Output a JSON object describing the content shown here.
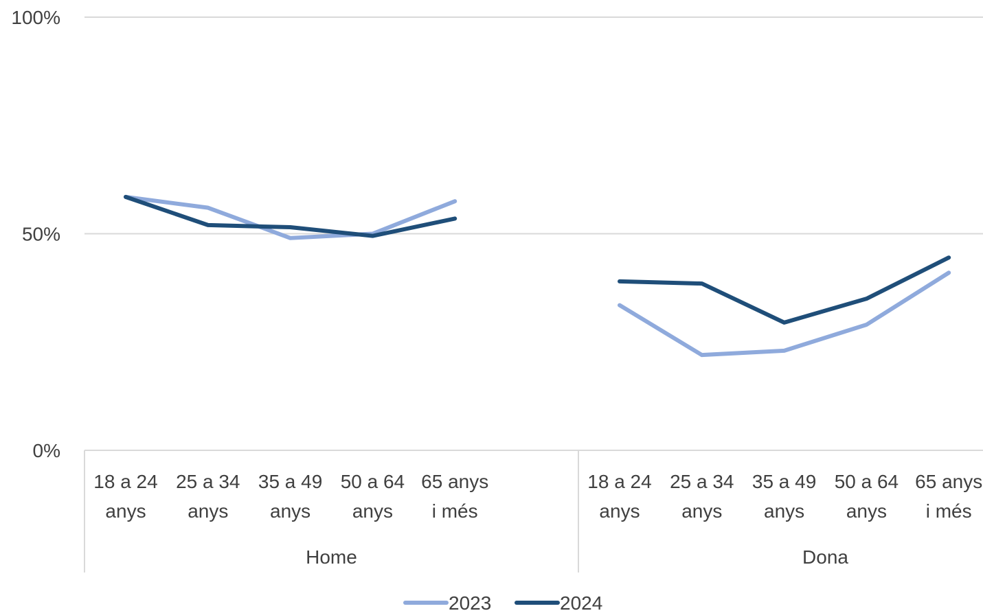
{
  "chart_data": {
    "type": "line",
    "title": "",
    "xlabel": "",
    "ylabel": "",
    "ylim": [
      0,
      100
    ],
    "y_ticks": [
      "0%",
      "50%",
      "100%"
    ],
    "grid": true,
    "legend_position": "bottom",
    "groups": [
      {
        "name": "Home",
        "categories": [
          "18 a 24 anys",
          "25 a 34 anys",
          "35 a 49 anys",
          "50 a 64 anys",
          "65 anys i més"
        ]
      },
      {
        "name": "Dona",
        "categories": [
          "18 a 24 anys",
          "25 a 34 anys",
          "35 a 49 anys",
          "50 a 64 anys",
          "65 anys i més"
        ]
      }
    ],
    "series": [
      {
        "name": "2023",
        "color": "#8FAADC",
        "values": [
          [
            58.5,
            56,
            49,
            50,
            57.5
          ],
          [
            33.5,
            22,
            23,
            29,
            41
          ]
        ]
      },
      {
        "name": "2024",
        "color": "#1F4E79",
        "values": [
          [
            58.5,
            52,
            51.5,
            49.5,
            53.5
          ],
          [
            39,
            38.5,
            29.5,
            35,
            44.5
          ]
        ]
      }
    ]
  }
}
